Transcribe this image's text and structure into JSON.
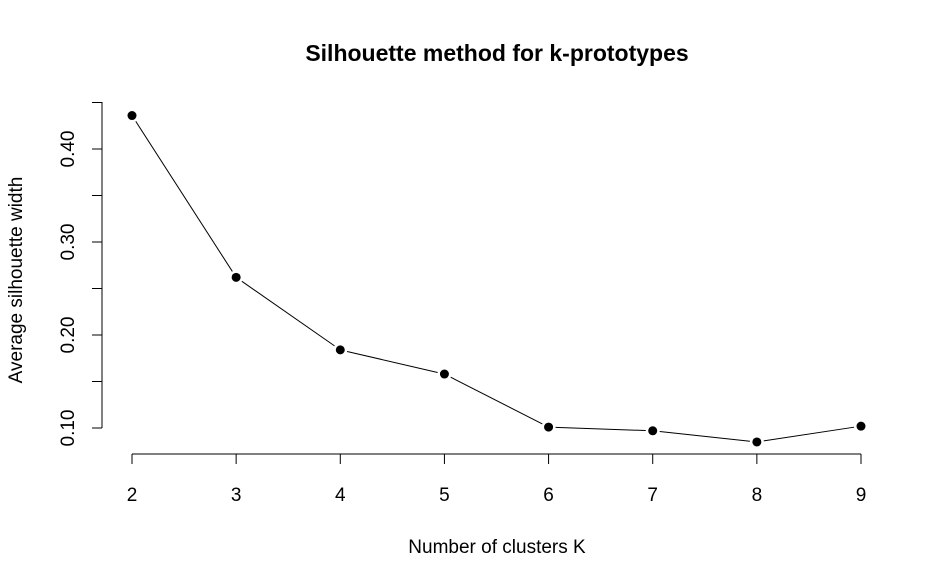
{
  "chart_data": {
    "type": "line",
    "title": "Silhouette method for k-prototypes",
    "xlabel": "Number of clusters K",
    "ylabel": "Average silhouette width",
    "x": [
      2,
      3,
      4,
      5,
      6,
      7,
      8,
      9
    ],
    "series": [
      {
        "values": [
          0.436,
          0.262,
          0.184,
          0.158,
          0.101,
          0.097,
          0.085,
          0.102
        ],
        "color": "#000000",
        "marker": "filled-circle"
      }
    ],
    "xticks": [
      2,
      3,
      4,
      5,
      6,
      7,
      8,
      9
    ],
    "xtick_labels": [
      "2",
      "3",
      "4",
      "5",
      "6",
      "7",
      "8",
      "9"
    ],
    "yticks": [
      0.1,
      0.15,
      0.2,
      0.25,
      0.3,
      0.35,
      0.4,
      0.45
    ],
    "ytick_labels": [
      "0.10",
      "",
      "0.20",
      "",
      "0.30",
      "",
      "0.40",
      ""
    ],
    "xlim": [
      2,
      9
    ],
    "ylim": [
      0.1,
      0.45
    ],
    "grid": false,
    "legend": "none"
  }
}
